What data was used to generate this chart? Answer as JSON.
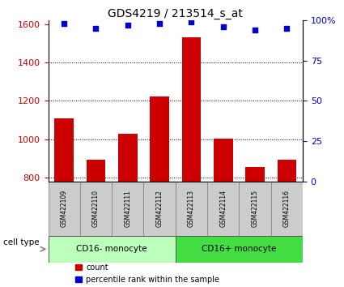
{
  "title": "GDS4219 / 213514_s_at",
  "samples": [
    "GSM422109",
    "GSM422110",
    "GSM422111",
    "GSM422112",
    "GSM422113",
    "GSM422114",
    "GSM422115",
    "GSM422116"
  ],
  "counts": [
    1110,
    895,
    1030,
    1225,
    1530,
    1005,
    855,
    895
  ],
  "percentile_ranks": [
    98,
    95,
    97,
    98,
    99,
    96,
    94,
    95
  ],
  "ylim_left": [
    780,
    1620
  ],
  "yticks_left": [
    800,
    1000,
    1200,
    1400,
    1600
  ],
  "ylim_right": [
    0,
    100
  ],
  "yticks_right": [
    0,
    25,
    50,
    75,
    100
  ],
  "yticklabels_right": [
    "0",
    "25",
    "50",
    "75",
    "100%"
  ],
  "bar_color": "#cc0000",
  "scatter_color": "#0000cc",
  "grid_color": "#000000",
  "bar_bottom": 780,
  "cell_types": [
    {
      "label": "CD16- monocyte",
      "indices": [
        0,
        1,
        2,
        3
      ],
      "color": "#bbffbb"
    },
    {
      "label": "CD16+ monocyte",
      "indices": [
        4,
        5,
        6,
        7
      ],
      "color": "#44dd44"
    }
  ],
  "cell_type_label": "cell type",
  "legend_count_label": "count",
  "legend_pct_label": "percentile rank within the sample",
  "tick_color_left": "#cc0000",
  "tick_color_right": "#0000cc",
  "background_color": "#ffffff",
  "sample_box_color": "#cccccc"
}
